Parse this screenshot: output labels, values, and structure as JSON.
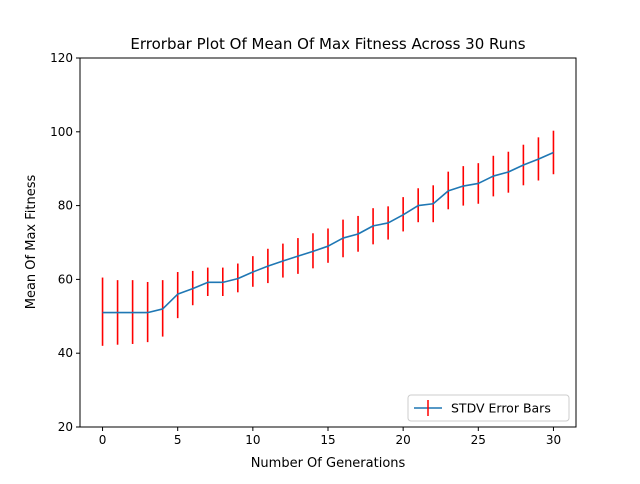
{
  "chart_data": {
    "type": "line",
    "title": "Errorbar Plot Of Mean Of Max Fitness Across 30 Runs",
    "xlabel": "Number Of Generations",
    "ylabel": "Mean Of Max Fitness",
    "xlim": [
      -1.5,
      31.5
    ],
    "ylim": [
      20,
      120
    ],
    "xticks": [
      0,
      5,
      10,
      15,
      20,
      25,
      30
    ],
    "yticks": [
      20,
      40,
      60,
      80,
      100,
      120
    ],
    "grid": false,
    "legend_position": "lower-right",
    "series": [
      {
        "name": "STDV Error Bars",
        "line_color": "#1f77b4",
        "error_color": "#ff0000",
        "x": [
          0,
          1,
          2,
          3,
          4,
          5,
          6,
          7,
          8,
          9,
          10,
          11,
          12,
          13,
          14,
          15,
          16,
          17,
          18,
          19,
          20,
          21,
          22,
          23,
          24,
          25,
          26,
          27,
          28,
          29,
          30
        ],
        "mean": [
          51,
          51,
          51,
          51,
          52,
          56,
          57.5,
          59.2,
          59.2,
          60.2,
          62,
          63.6,
          65,
          66.3,
          67.6,
          69,
          71.2,
          72.3,
          74.5,
          75.3,
          77.5,
          80,
          80.5,
          84,
          85.3,
          86,
          88,
          89.1,
          91,
          92.6,
          94.4
        ],
        "lower": [
          42,
          42.3,
          42.5,
          43,
          44.5,
          49.5,
          53,
          55.5,
          55.5,
          56.5,
          58,
          59,
          60.5,
          61.5,
          63,
          64.5,
          66,
          67.5,
          69.5,
          70.8,
          73,
          75.5,
          75.5,
          79,
          80,
          80.5,
          82.5,
          83.5,
          85.5,
          86.8,
          88.5
        ],
        "upper": [
          60.5,
          59.8,
          59.8,
          59.3,
          59.8,
          62,
          62.3,
          63.2,
          63.2,
          64.3,
          66.3,
          68.3,
          69.7,
          71.2,
          72.5,
          73.8,
          76.2,
          77.2,
          79.3,
          79.8,
          82.3,
          84.7,
          85.5,
          89.2,
          90.7,
          91.5,
          93.5,
          94.6,
          96.5,
          98.5,
          100.3
        ]
      }
    ]
  }
}
